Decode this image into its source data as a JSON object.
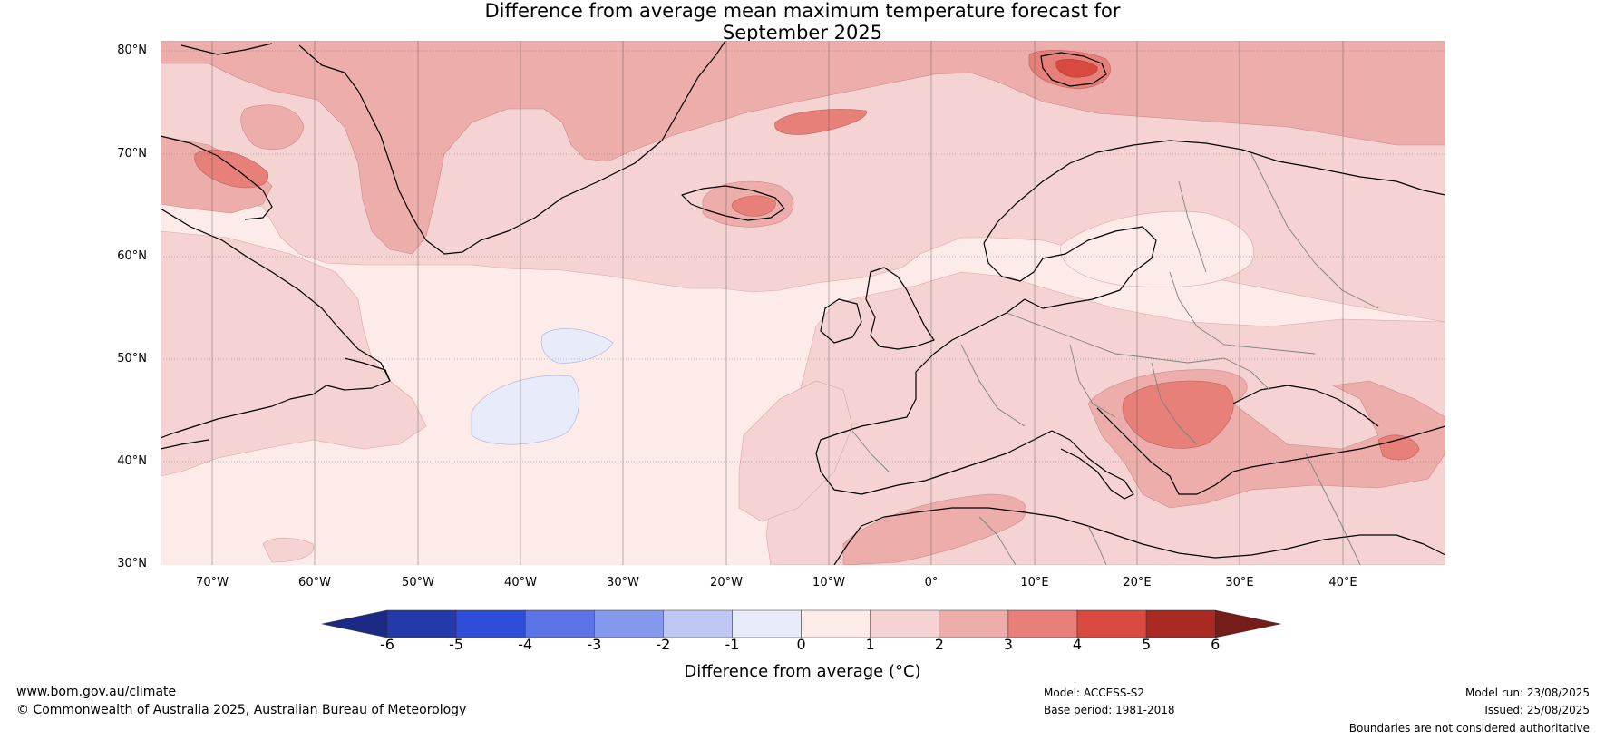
{
  "title": {
    "line1": "Difference from average mean maximum temperature forecast for",
    "line2": "September 2025"
  },
  "map": {
    "lat_labels": [
      "80°N",
      "70°N",
      "60°N",
      "50°N",
      "40°N",
      "30°N"
    ],
    "lon_labels": [
      "70°W",
      "60°W",
      "50°W",
      "40°W",
      "30°W",
      "20°W",
      "10°W",
      "0°",
      "10°E",
      "20°E",
      "30°E",
      "40°E"
    ],
    "extent": {
      "lon_min": -75,
      "lon_max": 50,
      "lat_min": 30,
      "lat_max": 81
    },
    "background_anomaly_class": "0 to 1",
    "warm_regions": [
      {
        "area": "Iceland",
        "class": "3 to 4"
      },
      {
        "area": "Svalbard",
        "class": "3 to 4"
      },
      {
        "area": "Balkans / Romania",
        "class": "3 to 4"
      },
      {
        "area": "Eastern Turkey / Caucasus",
        "class": "3 to 4"
      }
    ],
    "cool_regions": [
      {
        "area": "Central North Atlantic",
        "class": "-1 to 0"
      }
    ]
  },
  "colorbar": {
    "ticks": [
      "-6",
      "-5",
      "-4",
      "-3",
      "-2",
      "-1",
      "0",
      "1",
      "2",
      "3",
      "4",
      "5",
      "6"
    ],
    "colors": [
      "#243aa8",
      "#2e4ed8",
      "#5c74e6",
      "#8498ec",
      "#bfc8f3",
      "#e8ebfa",
      "#fcebe9",
      "#f5d3d2",
      "#edadab",
      "#e68078",
      "#d84a3f",
      "#a82a23"
    ],
    "under_color": "#1a2a85",
    "over_color": "#761d1a",
    "label": "Difference from average (°C)"
  },
  "colors": {
    "bin_0_1": "#fcebe9",
    "bin_1_2": "#f5d3d2",
    "bin_2_3": "#edadab",
    "bin_3_4": "#e68078",
    "bin_4_5": "#d84a3f",
    "bin_neg1_0": "#e8ebfa",
    "coastline": "#000000",
    "border": "#808080"
  },
  "footer": {
    "website": "www.bom.gov.au/climate",
    "copyright": "© Commonwealth of Australia 2025, Australian Bureau of Meteorology",
    "model": "Model: ACCESS-S2",
    "base_period": "Base period: 1981-2018",
    "model_run": "Model run: 23/08/2025",
    "issued": "Issued: 25/08/2025",
    "disclaimer": "Boundaries are not considered authoritative"
  }
}
